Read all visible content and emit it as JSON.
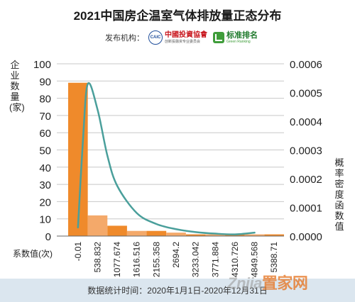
{
  "header": {
    "publisher_label": "发布机构：",
    "org1_name": "中國投資協會",
    "org1_sub": "创新投融资专业委员会",
    "org1_badge": "CAIC",
    "org2_name": "标准排名",
    "org2_sub": "Green Ranking"
  },
  "footer": {
    "text": "数据统计时间：2020年1月1日-2020年12月31日"
  },
  "watermark": {
    "main": "Znjia",
    "accent": "置家网"
  },
  "colors": {
    "bar_main": "#ef8a2b",
    "bar_light": "#f4a96a",
    "curve": "#4a9f9b",
    "grid": "#c8c8c8",
    "footer_bg": "#dbe6ef"
  },
  "chart_data": {
    "type": "bar",
    "title": "2021中国房企温室气体排放量正态分布",
    "xlabel": "系数值(次)",
    "ylabel": "企业数量(家)",
    "y2label": "概率密度函数值",
    "categories": [
      "-0.01",
      "538.832",
      "1077.674",
      "1616.516",
      "2155.358",
      "2694.2",
      "3233.042",
      "3771.884",
      "4310.726",
      "4849.568",
      "5388.71"
    ],
    "series": [
      {
        "type": "bar",
        "values": [
          89,
          12,
          6,
          3,
          3,
          2,
          1,
          1,
          1,
          1,
          1
        ]
      },
      {
        "type": "line",
        "axis": "right",
        "points": [
          {
            "x": -0.01,
            "y": 3e-05
          },
          {
            "x": 135,
            "y": 0.00033
          },
          {
            "x": 270,
            "y": 0.00053
          },
          {
            "x": 538.832,
            "y": 0.00044
          },
          {
            "x": 808,
            "y": 0.00028
          },
          {
            "x": 1077.674,
            "y": 0.000175
          },
          {
            "x": 1616.516,
            "y": 8e-05
          },
          {
            "x": 2155.358,
            "y": 4.2e-05
          },
          {
            "x": 2694.2,
            "y": 2.4e-05
          },
          {
            "x": 3233.042,
            "y": 1.4e-05
          },
          {
            "x": 3771.884,
            "y": 8.5e-06
          },
          {
            "x": 4310.726,
            "y": 6e-06
          },
          {
            "x": 4849.568,
            "y": 1.2e-05
          }
        ]
      }
    ],
    "ylim": [
      0,
      100
    ],
    "y_ticks": [
      0,
      10,
      20,
      30,
      40,
      50,
      60,
      70,
      80,
      90,
      100
    ],
    "y2lim": [
      0,
      0.0006
    ],
    "y2_ticks": [
      "0.0000",
      "0.0001",
      "0.0002",
      "0.0003",
      "0.0004",
      "0.0005",
      "0.0006"
    ],
    "grid": true,
    "legend": "none"
  }
}
